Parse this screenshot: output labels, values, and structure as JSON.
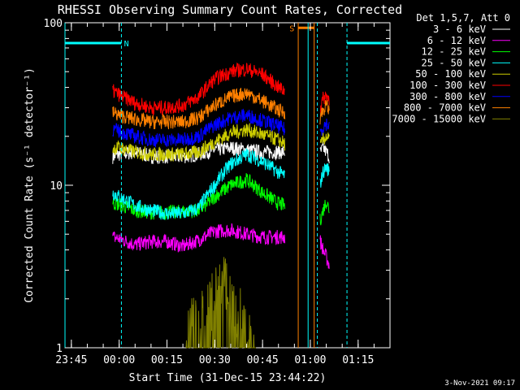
{
  "chart_data": {
    "type": "line",
    "title": "RHESSI Observing Summary Count Rates, Corrected",
    "xlabel": "Start Time (31-Dec-15 23:44:22)",
    "ylabel": "Corrected Count Rate (s⁻¹ detector⁻¹)",
    "yscale": "log",
    "ylim": [
      1,
      100
    ],
    "xlim_minutes": [
      -2,
      100
    ],
    "x_ticks": [
      {
        "label": "23:45",
        "minute": 0
      },
      {
        "label": "00:00",
        "minute": 15
      },
      {
        "label": "00:15",
        "minute": 30
      },
      {
        "label": "00:30",
        "minute": 45
      },
      {
        "label": "00:45",
        "minute": 60
      },
      {
        "label": "01:00",
        "minute": 75
      },
      {
        "label": "01:15",
        "minute": 90
      }
    ],
    "y_ticks": [
      {
        "label": "1",
        "value": 1
      },
      {
        "label": "10",
        "value": 10
      },
      {
        "label": "100",
        "value": 100
      }
    ],
    "legend_header": "Det 1,5,7, Att 0",
    "legend_position": "top-right",
    "footer_date": "3-Nov-2021 09:17",
    "series": [
      {
        "name": "3 - 6 keV",
        "color": "#ffffff",
        "x": [
          13,
          15,
          20,
          25,
          30,
          35,
          40,
          45,
          50,
          55,
          60,
          67,
          68,
          77,
          78,
          79,
          80,
          81
        ],
        "y": [
          15,
          15.5,
          16,
          15,
          15,
          15,
          15.5,
          16.5,
          17,
          16.5,
          16,
          16,
          null,
          null,
          15.5,
          17,
          16,
          15
        ]
      },
      {
        "name": "6 - 12 keV",
        "color": "#ff00ff",
        "x": [
          13,
          15,
          20,
          25,
          30,
          35,
          40,
          45,
          50,
          55,
          60,
          67,
          68,
          77,
          78,
          79,
          80,
          81
        ],
        "y": [
          4.8,
          4.7,
          4.3,
          4.5,
          4.5,
          4.2,
          4.6,
          5.2,
          5.3,
          5,
          4.8,
          4.8,
          null,
          null,
          4.6,
          4,
          3.6,
          3.2
        ]
      },
      {
        "name": "12 - 25 keV",
        "color": "#00ff00",
        "x": [
          13,
          15,
          20,
          25,
          30,
          35,
          40,
          42,
          45,
          50,
          55,
          60,
          65,
          67,
          68,
          77,
          78,
          79,
          80,
          81
        ],
        "y": [
          7.8,
          7.6,
          7,
          6.8,
          6.8,
          6.9,
          7,
          7.5,
          8.5,
          10,
          10.8,
          9,
          7.7,
          7.5,
          null,
          null,
          6,
          7,
          8,
          7
        ]
      },
      {
        "name": "25 - 50 keV",
        "color": "#00ffff",
        "x": [
          13,
          15,
          20,
          25,
          30,
          35,
          40,
          45,
          50,
          55,
          60,
          65,
          67,
          68,
          77,
          78,
          79,
          80,
          81
        ],
        "y": [
          9,
          8.5,
          7.5,
          7,
          6.7,
          6.7,
          7.2,
          10,
          13.5,
          15.5,
          14,
          12,
          11.5,
          null,
          null,
          10,
          12,
          13,
          12
        ]
      },
      {
        "name": "50 - 100 keV",
        "color": "#cccc00",
        "x": [
          13,
          15,
          20,
          25,
          30,
          35,
          40,
          45,
          50,
          55,
          60,
          65,
          67,
          68,
          77,
          78,
          79,
          80,
          81
        ],
        "y": [
          17,
          17,
          16,
          15.5,
          15.5,
          15.5,
          16,
          18.5,
          21,
          22,
          20.5,
          19,
          18,
          null,
          null,
          17,
          19,
          20,
          19
        ]
      },
      {
        "name": "100 - 300 keV",
        "color": "#ff0000",
        "x": [
          13,
          15,
          20,
          25,
          30,
          35,
          40,
          45,
          50,
          55,
          60,
          65,
          67,
          68,
          77,
          78,
          79,
          80,
          81
        ],
        "y": [
          38,
          36,
          32,
          30,
          30,
          31,
          35,
          45,
          50,
          52,
          48,
          40,
          38,
          null,
          null,
          30,
          34,
          36,
          34
        ]
      },
      {
        "name": "300 - 800 keV",
        "color": "#0000ff",
        "x": [
          13,
          15,
          20,
          25,
          30,
          35,
          40,
          45,
          50,
          55,
          60,
          65,
          67,
          68,
          77,
          78,
          79,
          80,
          81
        ],
        "y": [
          22,
          21.5,
          20,
          19,
          19,
          19,
          20,
          23.5,
          26,
          27,
          25,
          23,
          22,
          null,
          null,
          21,
          23,
          24,
          23
        ]
      },
      {
        "name": "800 - 7000 keV",
        "color": "#ff8000",
        "x": [
          13,
          15,
          20,
          25,
          30,
          35,
          40,
          45,
          50,
          55,
          60,
          65,
          67,
          68,
          77,
          78,
          79,
          80,
          81
        ],
        "y": [
          28,
          27,
          25.5,
          24.5,
          24.5,
          24.5,
          26,
          31,
          35,
          37,
          33,
          29,
          28,
          null,
          null,
          26,
          29,
          31,
          29
        ]
      },
      {
        "name": "7000 - 15000 keV",
        "color": "#808000",
        "x": [
          36,
          38,
          40,
          42,
          44,
          46,
          48,
          50,
          52,
          54,
          56,
          58
        ],
        "y": [
          1,
          1.6,
          1.9,
          2,
          2.1,
          2.4,
          2.6,
          2.2,
          1.9,
          1.6,
          1.3,
          1
        ]
      }
    ],
    "annotations": [
      {
        "label": "N",
        "color": "#00ffff",
        "text_minute": 17.3,
        "y_value": 75,
        "bars": [
          {
            "x0": -2,
            "x1": 15.7
          },
          {
            "x0": 86.5,
            "x1": 100
          }
        ],
        "vlines": [
          15.7,
          86.5
        ]
      },
      {
        "label": "S",
        "color": "#ff8000",
        "text_minute": 69.2,
        "y_value": 93,
        "bars": [
          {
            "x0": 71.2,
            "x1": 76.2
          }
        ],
        "vlines": [
          71.2,
          76.2
        ]
      }
    ],
    "vertical_markers": [
      {
        "minute": -2,
        "color": "#00ffff",
        "style": "solid"
      },
      {
        "minute": 74.3,
        "color": "#00ffff",
        "style": "solid"
      },
      {
        "minute": 77.2,
        "color": "#00ffff",
        "style": "dashed"
      }
    ]
  }
}
